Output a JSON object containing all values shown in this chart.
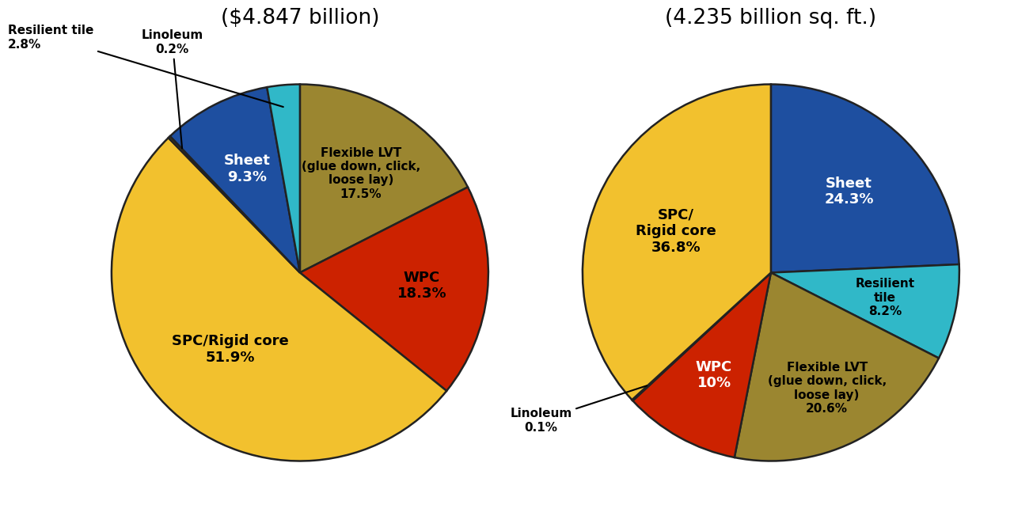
{
  "chart1_title": "($4.847 billion)",
  "chart2_title": "(4.235 billion sq. ft.)",
  "chart1_slices": [
    {
      "label": "SPC/Rigid core\n51.9%",
      "value": 51.9,
      "color": "#F2C12E",
      "text_color": "black"
    },
    {
      "label": "Linoleum\n0.2%",
      "value": 0.2,
      "color": "#7B5E00",
      "text_color": "black"
    },
    {
      "label": "WPC\n18.3%",
      "value": 18.3,
      "color": "#CC2200",
      "text_color": "black"
    },
    {
      "label": "Flexible LVT\n(glue down, click,\nloose lay)\n17.5%",
      "value": 17.5,
      "color": "#9B8630",
      "text_color": "black"
    },
    {
      "label": "Resilient tile\n2.8%",
      "value": 2.8,
      "color": "#30B8C8",
      "text_color": "black"
    },
    {
      "label": "Sheet\n9.3%",
      "value": 9.3,
      "color": "#1E4FA0",
      "text_color": "white"
    }
  ],
  "chart2_slices": [
    {
      "label": "SPC/\nRigid core\n36.8%",
      "value": 36.8,
      "color": "#F2C12E",
      "text_color": "black"
    },
    {
      "label": "Linoleum\n0.1%",
      "value": 0.1,
      "color": "#7B5E00",
      "text_color": "black"
    },
    {
      "label": "WPC\n10%",
      "value": 10.0,
      "color": "#CC2200",
      "text_color": "white"
    },
    {
      "label": "Flexible LVT\n(glue down, click,\nloose lay)\n20.6%",
      "value": 20.6,
      "color": "#9B8630",
      "text_color": "black"
    },
    {
      "label": "Resilient\ntile\n8.2%",
      "value": 8.2,
      "color": "#30B8C8",
      "text_color": "black"
    },
    {
      "label": "Sheet\n24.3%",
      "value": 24.3,
      "color": "#1E4FA0",
      "text_color": "white"
    }
  ],
  "background_color": "#FFFFFF",
  "title_fontsize": 19,
  "label_fontsize_large": 13,
  "label_fontsize_small": 11
}
